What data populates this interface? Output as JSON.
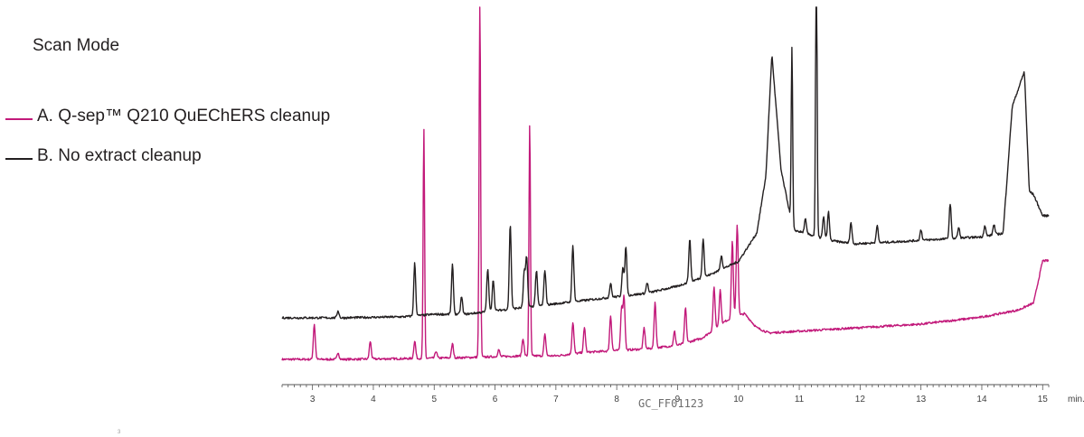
{
  "title": "Scan Mode",
  "footer_id": "GC_FF01123",
  "tiny_mark": "3",
  "colors": {
    "series_a": "#c2197a",
    "series_b": "#231f20",
    "axis": "#555555"
  },
  "chart_data": {
    "type": "line",
    "title": "Scan Mode",
    "xlabel": "",
    "ylabel": "",
    "x_unit": "min.",
    "xlim": [
      2.5,
      15.1
    ],
    "ylim": [
      0,
      1.0
    ],
    "x_ticks": [
      3,
      4,
      5,
      6,
      7,
      8,
      9,
      10,
      11,
      12,
      13,
      14,
      15
    ],
    "minor_tick_step": 0.1,
    "grid": false,
    "legend_position": "left",
    "series": [
      {
        "name": "A. Q-sep™ Q210 QuEChERS cleanup",
        "color": "#c2197a",
        "baseline": [
          [
            2.5,
            0.07
          ],
          [
            3.5,
            0.07
          ],
          [
            4.5,
            0.072
          ],
          [
            5.5,
            0.075
          ],
          [
            6.5,
            0.08
          ],
          [
            7.0,
            0.08
          ],
          [
            7.5,
            0.09
          ],
          [
            8.0,
            0.095
          ],
          [
            8.5,
            0.1
          ],
          [
            9.0,
            0.11
          ],
          [
            9.4,
            0.13
          ],
          [
            9.8,
            0.18
          ],
          [
            10.1,
            0.2
          ],
          [
            10.3,
            0.16
          ],
          [
            10.5,
            0.145
          ],
          [
            11.0,
            0.15
          ],
          [
            12.0,
            0.16
          ],
          [
            13.0,
            0.17
          ],
          [
            14.0,
            0.19
          ],
          [
            14.6,
            0.21
          ],
          [
            14.85,
            0.23
          ],
          [
            15.0,
            0.35
          ],
          [
            15.1,
            0.35
          ]
        ],
        "peaks": [
          [
            3.03,
            0.1
          ],
          [
            3.42,
            0.02
          ],
          [
            3.95,
            0.05
          ],
          [
            4.68,
            0.05
          ],
          [
            4.83,
            0.65
          ],
          [
            5.03,
            0.02
          ],
          [
            5.3,
            0.04
          ],
          [
            5.75,
            1.05
          ],
          [
            6.06,
            0.02
          ],
          [
            6.46,
            0.05
          ],
          [
            6.57,
            0.66
          ],
          [
            6.82,
            0.06
          ],
          [
            7.28,
            0.09
          ],
          [
            7.47,
            0.07
          ],
          [
            7.9,
            0.1
          ],
          [
            8.08,
            0.12
          ],
          [
            8.12,
            0.15
          ],
          [
            8.45,
            0.06
          ],
          [
            8.63,
            0.13
          ],
          [
            8.95,
            0.04
          ],
          [
            9.13,
            0.1
          ],
          [
            9.6,
            0.12
          ],
          [
            9.7,
            0.1
          ],
          [
            9.9,
            0.22
          ],
          [
            9.98,
            0.26
          ]
        ]
      },
      {
        "name": "B. No extract cleanup",
        "color": "#231f20",
        "baseline": [
          [
            2.5,
            0.2
          ],
          [
            3.5,
            0.2
          ],
          [
            4.5,
            0.203
          ],
          [
            5.0,
            0.21
          ],
          [
            5.5,
            0.21
          ],
          [
            6.0,
            0.22
          ],
          [
            6.5,
            0.23
          ],
          [
            7.0,
            0.24
          ],
          [
            7.5,
            0.25
          ],
          [
            8.0,
            0.26
          ],
          [
            8.5,
            0.27
          ],
          [
            9.0,
            0.29
          ],
          [
            9.5,
            0.32
          ],
          [
            10.0,
            0.36
          ],
          [
            10.3,
            0.44
          ],
          [
            10.45,
            0.6
          ],
          [
            10.55,
            0.95
          ],
          [
            10.7,
            0.62
          ],
          [
            10.9,
            0.45
          ],
          [
            11.1,
            0.44
          ],
          [
            11.5,
            0.42
          ],
          [
            11.9,
            0.41
          ],
          [
            12.5,
            0.415
          ],
          [
            13.0,
            0.42
          ],
          [
            13.5,
            0.425
          ],
          [
            14.0,
            0.43
          ],
          [
            14.35,
            0.44
          ],
          [
            14.5,
            0.8
          ],
          [
            14.7,
            0.9
          ],
          [
            14.78,
            0.56
          ],
          [
            14.85,
            0.55
          ],
          [
            15.0,
            0.49
          ],
          [
            15.1,
            0.49
          ]
        ],
        "peaks": [
          [
            3.42,
            0.02
          ],
          [
            4.68,
            0.15
          ],
          [
            5.3,
            0.14
          ],
          [
            5.45,
            0.05
          ],
          [
            5.88,
            0.12
          ],
          [
            5.97,
            0.09
          ],
          [
            6.25,
            0.24
          ],
          [
            6.48,
            0.1
          ],
          [
            6.52,
            0.14
          ],
          [
            6.68,
            0.1
          ],
          [
            6.82,
            0.1
          ],
          [
            7.28,
            0.16
          ],
          [
            7.9,
            0.04
          ],
          [
            8.1,
            0.08
          ],
          [
            8.15,
            0.14
          ],
          [
            8.5,
            0.03
          ],
          [
            9.2,
            0.12
          ],
          [
            9.42,
            0.11
          ],
          [
            9.72,
            0.04
          ],
          [
            10.88,
            0.5
          ],
          [
            11.1,
            0.04
          ],
          [
            11.28,
            0.9
          ],
          [
            11.4,
            0.06
          ],
          [
            11.48,
            0.08
          ],
          [
            11.85,
            0.06
          ],
          [
            12.28,
            0.05
          ],
          [
            13.0,
            0.03
          ],
          [
            13.48,
            0.1
          ],
          [
            13.62,
            0.03
          ],
          [
            14.05,
            0.03
          ],
          [
            14.2,
            0.03
          ]
        ]
      }
    ]
  }
}
